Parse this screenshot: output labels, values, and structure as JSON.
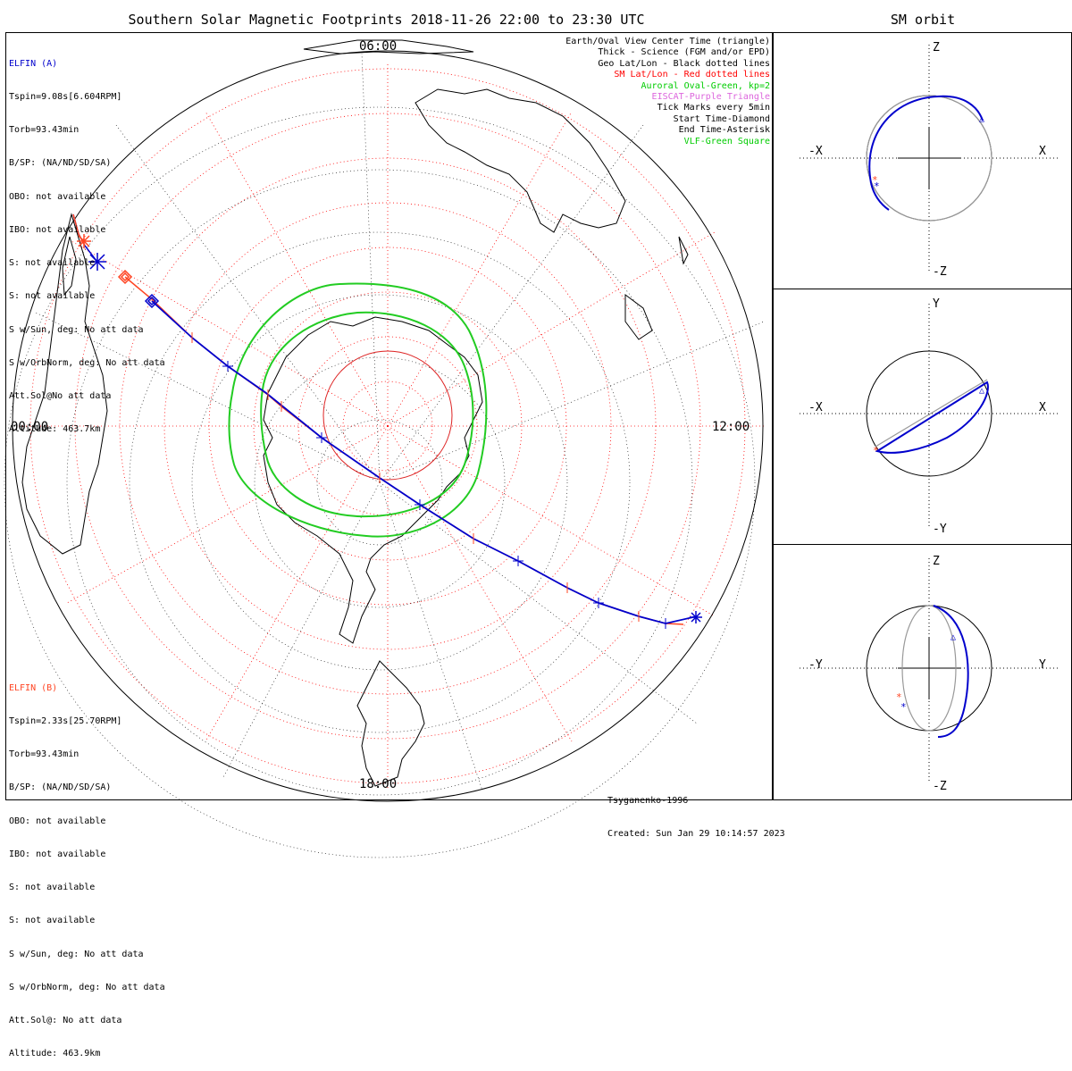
{
  "title": "Southern Solar Magnetic Footprints 2018-11-26 22:00 to 23:30 UTC",
  "orbit_title": "SM orbit",
  "hours": {
    "left": "00:00",
    "right": "12:00",
    "top": "06:00",
    "bottom": "18:00"
  },
  "elfin_a": {
    "name": "ELFIN (A)",
    "lines": [
      "Tspin=9.08s[6.604RPM]",
      "Torb=93.43min",
      "B/SP: (NA/ND/SD/SA)",
      "OBO: not available",
      "IBO: not available",
      "S: not available",
      "S: not available",
      "S w/Sun, deg: No att data",
      "S w/OrbNorm, deg: No att data",
      "Att.Sol@No att data",
      "Altitude: 463.7km"
    ]
  },
  "elfin_b": {
    "name": "ELFIN (B)",
    "lines": [
      "Tspin=2.33s[25.70RPM]",
      "Torb=93.43min",
      "B/SP: (NA/ND/SD/SA)",
      "OBO: not available",
      "IBO: not available",
      "S: not available",
      "S: not available",
      "S w/Sun, deg: No att data",
      "S w/OrbNorm, deg: No att data",
      "Att.Sol@: No att data",
      "Altitude: 463.9km"
    ]
  },
  "legend": [
    {
      "text": "Earth/Oval View Center Time (triangle)",
      "color": "#000000"
    },
    {
      "text": "Thick - Science (FGM and/or EPD)",
      "color": "#000000"
    },
    {
      "text": "Geo Lat/Lon - Black dotted lines",
      "color": "#000000"
    },
    {
      "text": "SM Lat/Lon - Red dotted lines",
      "color": "#ff0000"
    },
    {
      "text": "Auroral Oval-Green, kp=2",
      "color": "#00cc00"
    },
    {
      "text": "EISCAT-Purple Triangle",
      "color": "#dd66dd"
    },
    {
      "text": "Tick Marks every 5min",
      "color": "#000000"
    },
    {
      "text": "Start Time-Diamond",
      "color": "#000000"
    },
    {
      "text": "End Time-Asterisk",
      "color": "#000000"
    },
    {
      "text": "VLF-Green Square",
      "color": "#00cc00"
    }
  ],
  "model": "Tsyganenko-1996",
  "created": "Created: Sun Jan 29 10:14:57 2023",
  "orbit_panels": [
    {
      "left": "-X",
      "right": "X",
      "top": "Z",
      "bottom": "-Z"
    },
    {
      "left": "-X",
      "right": "X",
      "top": "Y",
      "bottom": "-Y"
    },
    {
      "left": "-Y",
      "right": "Y",
      "top": "Z",
      "bottom": "-Z"
    }
  ],
  "colors": {
    "elfin_a": "#0000cc",
    "elfin_b": "#ff4422",
    "oval": "#22cc22",
    "sm_grid": "#ff0000",
    "geo_grid": "#000000",
    "orbit_trace": "#999999"
  }
}
